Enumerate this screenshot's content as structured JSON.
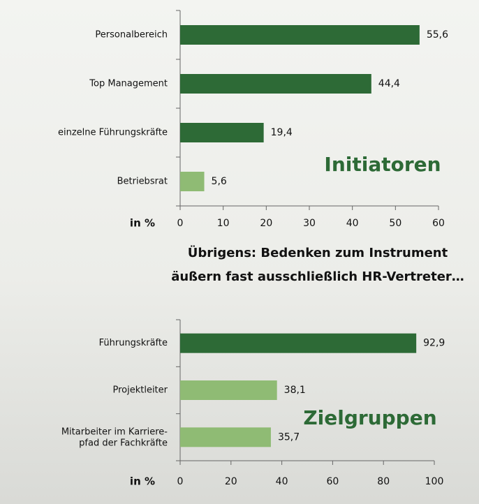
{
  "chart_data": [
    {
      "type": "hbar",
      "annotation": "Initiatoren",
      "x_label": "in %",
      "categories": [
        "Personalbereich",
        "Top Management",
        "einzelne Führungskräfte",
        "Betriebsrat"
      ],
      "values": [
        55.6,
        44.4,
        19.4,
        5.6
      ],
      "value_labels": [
        "55,6",
        "44,4",
        "19,4",
        "5,6"
      ],
      "colors": [
        "#2d6a36",
        "#2d6a36",
        "#2d6a36",
        "#8fbb74"
      ],
      "xlim": [
        0,
        60
      ],
      "xticks": [
        0,
        10,
        20,
        30,
        40,
        50,
        60
      ]
    },
    {
      "type": "hbar",
      "annotation": "Zielgruppen",
      "x_label": "in %",
      "categories": [
        "Führungskräfte",
        "Projektleiter",
        "Mitarbeiter im Karriere-\npfad der Fachkräfte"
      ],
      "values": [
        92.9,
        38.1,
        35.7
      ],
      "value_labels": [
        "92,9",
        "38,1",
        "35,7"
      ],
      "colors": [
        "#2d6a36",
        "#8fbb74",
        "#8fbb74"
      ],
      "xlim": [
        0,
        100
      ],
      "xticks": [
        0,
        20,
        40,
        60,
        80,
        100
      ]
    }
  ],
  "note": [
    "Übrigens: Bedenken zum Instrument",
    "äußern fast ausschließlich HR-Vertreter…"
  ]
}
